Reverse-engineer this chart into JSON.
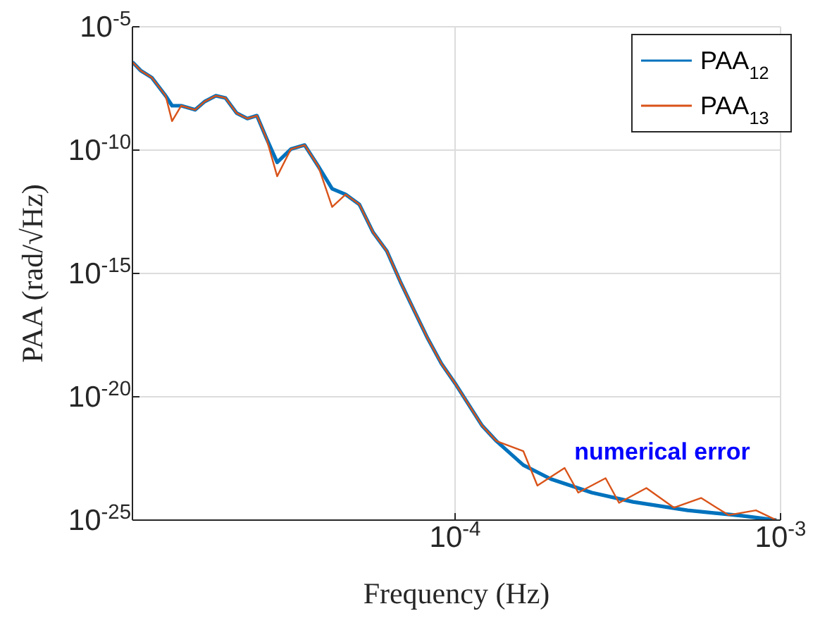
{
  "chart_data": {
    "type": "line",
    "xlabel": "Frequency (Hz)",
    "ylabel": "PAA (rad/√Hz)",
    "log": "xy",
    "grid": true,
    "legend": "top right",
    "line_style": "solid",
    "marker": "none",
    "xlim": [
      1.02e-05,
      0.001
    ],
    "xticks": [
      {
        "value": 0.0001,
        "label": "10$^{-4}$"
      },
      {
        "value": 0.001,
        "label": "10$^{-3}$"
      }
    ],
    "ylim": [
      1e-25,
      1e-05
    ],
    "yticks": [
      {
        "value": 1e-25,
        "label": "10$^{-25}$"
      },
      {
        "value": 1e-20,
        "label": "10$^{-20}$"
      },
      {
        "value": 1e-15,
        "label": "10$^{-15}$"
      },
      {
        "value": 1e-10,
        "label": "10$^{-10}$"
      },
      {
        "value": 1e-05,
        "label": "10$^{-5}$"
      }
    ],
    "series": [
      {
        "name": "PAA$_{12}$",
        "color": "#0072bd",
        "x": [
          1.02e-05,
          1.08e-05,
          1.17e-05,
          1.29e-05,
          1.35e-05,
          1.44e-05,
          1.59e-05,
          1.7e-05,
          1.84e-05,
          1.97e-05,
          2.13e-05,
          2.3e-05,
          2.46e-05,
          2.63e-05,
          2.84e-05,
          3.13e-05,
          3.45e-05,
          3.8e-05,
          4.19e-05,
          4.61e-05,
          5.08e-05,
          5.6e-05,
          6.17e-05,
          6.79e-05,
          7.48e-05,
          8.24e-05,
          9.08e-05,
          0.0001,
          0.00011,
          0.000121,
          0.000134,
          0.000162,
          0.000197,
          0.000263,
          0.000352,
          0.000518,
          0.000762,
          0.000971
        ],
        "values": [
          3.7e-07,
          1.7e-07,
          8.7e-08,
          1.6e-08,
          6.3e-09,
          6.3e-09,
          4.3e-09,
          9.3e-09,
          1.6e-08,
          1.3e-08,
          3.2e-09,
          1.9e-09,
          2.5e-09,
          3.1e-10,
          3.2e-11,
          1.1e-10,
          1.6e-10,
          2.2e-11,
          2.7e-12,
          1.6e-12,
          6.3e-13,
          4.6e-14,
          8.1e-15,
          4.6e-16,
          3.2e-17,
          2.3e-18,
          2.2e-19,
          3.5e-20,
          4.9e-21,
          6.8e-22,
          1.6e-22,
          1.7e-23,
          4.6e-24,
          1.3e-24,
          5.5e-25,
          2.5e-25,
          1.5e-25,
          1e-25
        ]
      },
      {
        "name": "PAA$_{13}$",
        "color": "#d95319",
        "x": [
          1.02e-05,
          1.08e-05,
          1.17e-05,
          1.29e-05,
          1.35e-05,
          1.44e-05,
          1.59e-05,
          1.7e-05,
          1.84e-05,
          1.97e-05,
          2.13e-05,
          2.3e-05,
          2.46e-05,
          2.63e-05,
          2.84e-05,
          3.13e-05,
          3.45e-05,
          3.8e-05,
          4.19e-05,
          4.61e-05,
          5.08e-05,
          5.6e-05,
          6.17e-05,
          6.79e-05,
          7.48e-05,
          8.24e-05,
          9.08e-05,
          0.0001,
          0.00011,
          0.000121,
          0.000134,
          0.000162,
          0.000179,
          0.000217,
          0.000239,
          0.00029,
          0.000319,
          0.000387,
          0.00047,
          0.00057,
          0.000692,
          0.00084,
          0.000971
        ],
        "values": [
          3.7e-07,
          1.7e-07,
          8.7e-08,
          1.6e-08,
          1.5e-09,
          6.3e-09,
          4.3e-09,
          9.3e-09,
          1.6e-08,
          1.3e-08,
          3.2e-09,
          1.9e-09,
          2.5e-09,
          3.1e-10,
          8.7e-12,
          1.1e-10,
          1.6e-10,
          2.2e-11,
          5e-13,
          1.6e-12,
          6.3e-13,
          4.6e-14,
          8.1e-15,
          4.6e-16,
          3.2e-17,
          2.3e-18,
          2.2e-19,
          3.5e-20,
          4.9e-21,
          6.8e-22,
          1.6e-22,
          6.3e-23,
          2.5e-24,
          1.3e-23,
          1.3e-24,
          5e-24,
          5e-25,
          2e-24,
          3.2e-25,
          7.9e-25,
          1.6e-25,
          2.5e-25,
          1e-25
        ]
      }
    ],
    "annotations": [
      "numerical error"
    ]
  }
}
